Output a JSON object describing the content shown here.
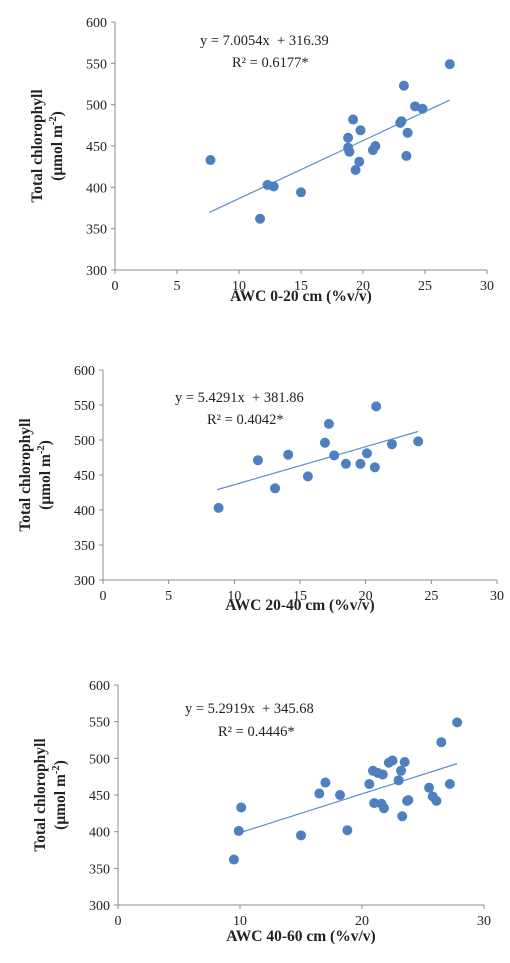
{
  "chart_data": [
    {
      "type": "scatter",
      "xlabel": "AWC 0-20 cm (%v/v)",
      "ylabel_line1": "Total chlorophyll",
      "ylabel_line2": "(μmol m",
      "ylabel_sup": "-2",
      "ylabel_end": ")",
      "equation": "y = 7.0054x  + 316.39",
      "r2_text": "R² = 0.6177*",
      "xlim": [
        0,
        30
      ],
      "ylim": [
        300,
        600
      ],
      "x_ticks": [
        "0",
        "5",
        "10",
        "15",
        "20",
        "25",
        "30"
      ],
      "y_ticks": [
        "300",
        "350",
        "400",
        "450",
        "500",
        "550",
        "600"
      ],
      "trend": {
        "slope": 7.0054,
        "intercept": 316.39,
        "x_range": [
          7.6,
          27.0
        ]
      },
      "grid": false,
      "x": [
        7.7,
        11.7,
        12.3,
        12.8,
        15.0,
        18.8,
        18.8,
        18.9,
        19.2,
        19.4,
        19.7,
        19.8,
        20.8,
        21.0,
        23.0,
        23.1,
        23.3,
        23.5,
        23.6,
        24.2,
        24.8,
        27.0
      ],
      "y": [
        433,
        362,
        403,
        401,
        394,
        460,
        448,
        443,
        482,
        421,
        431,
        469,
        445,
        450,
        478,
        480,
        523,
        438,
        466,
        498,
        495,
        549
      ]
    },
    {
      "type": "scatter",
      "xlabel": "AWC 20-40 cm (%v/v)",
      "ylabel_line1": "Total chlorophyll",
      "ylabel_line2": "(μmol m",
      "ylabel_sup": "-2",
      "ylabel_end": ")",
      "equation": "y = 5.4291x  + 381.86",
      "r2_text": "R² = 0.4042*",
      "xlim": [
        0,
        30
      ],
      "ylim": [
        300,
        600
      ],
      "x_ticks": [
        "0",
        "5",
        "10",
        "15",
        "20",
        "25",
        "30"
      ],
      "y_ticks": [
        "300",
        "350",
        "400",
        "450",
        "500",
        "550",
        "600"
      ],
      "trend": {
        "slope": 5.4291,
        "intercept": 381.86,
        "x_range": [
          8.7,
          24.0
        ]
      },
      "grid": false,
      "x": [
        8.8,
        11.8,
        13.1,
        14.1,
        15.6,
        16.9,
        17.2,
        17.6,
        18.5,
        19.6,
        20.1,
        20.7,
        20.8,
        22.0,
        24.0
      ],
      "y": [
        403,
        471,
        431,
        479,
        448,
        496,
        523,
        478,
        466,
        466,
        481,
        461,
        548,
        494,
        498
      ]
    },
    {
      "type": "scatter",
      "xlabel": "AWC 40-60 cm (%v/v)",
      "ylabel_line1": "Total chlorophyll",
      "ylabel_line2": "(μmol m",
      "ylabel_sup": "-2",
      "ylabel_end": ")",
      "equation": "y = 5.2919x  + 345.68",
      "r2_text": "R² = 0.4446*",
      "xlim": [
        0,
        30
      ],
      "ylim": [
        300,
        600
      ],
      "x_ticks": [
        "0",
        "10",
        "20",
        "30"
      ],
      "y_ticks": [
        "300",
        "350",
        "400",
        "450",
        "500",
        "550",
        "600"
      ],
      "trend": {
        "slope": 5.2919,
        "intercept": 345.68,
        "x_range": [
          9.6,
          27.8
        ]
      },
      "grid": false,
      "x": [
        9.5,
        9.9,
        10.1,
        15.0,
        16.5,
        17.0,
        18.2,
        18.8,
        20.6,
        20.9,
        21.0,
        21.3,
        21.6,
        21.7,
        21.8,
        22.2,
        22.5,
        23.0,
        23.2,
        23.3,
        23.5,
        23.7,
        23.8,
        25.5,
        25.8,
        26.1,
        26.5,
        27.2,
        27.8
      ],
      "y": [
        362,
        401,
        433,
        395,
        452,
        467,
        450,
        402,
        465,
        483,
        439,
        480,
        438,
        478,
        432,
        494,
        497,
        470,
        483,
        421,
        495,
        442,
        443,
        460,
        448,
        442,
        522,
        465,
        549
      ]
    }
  ]
}
